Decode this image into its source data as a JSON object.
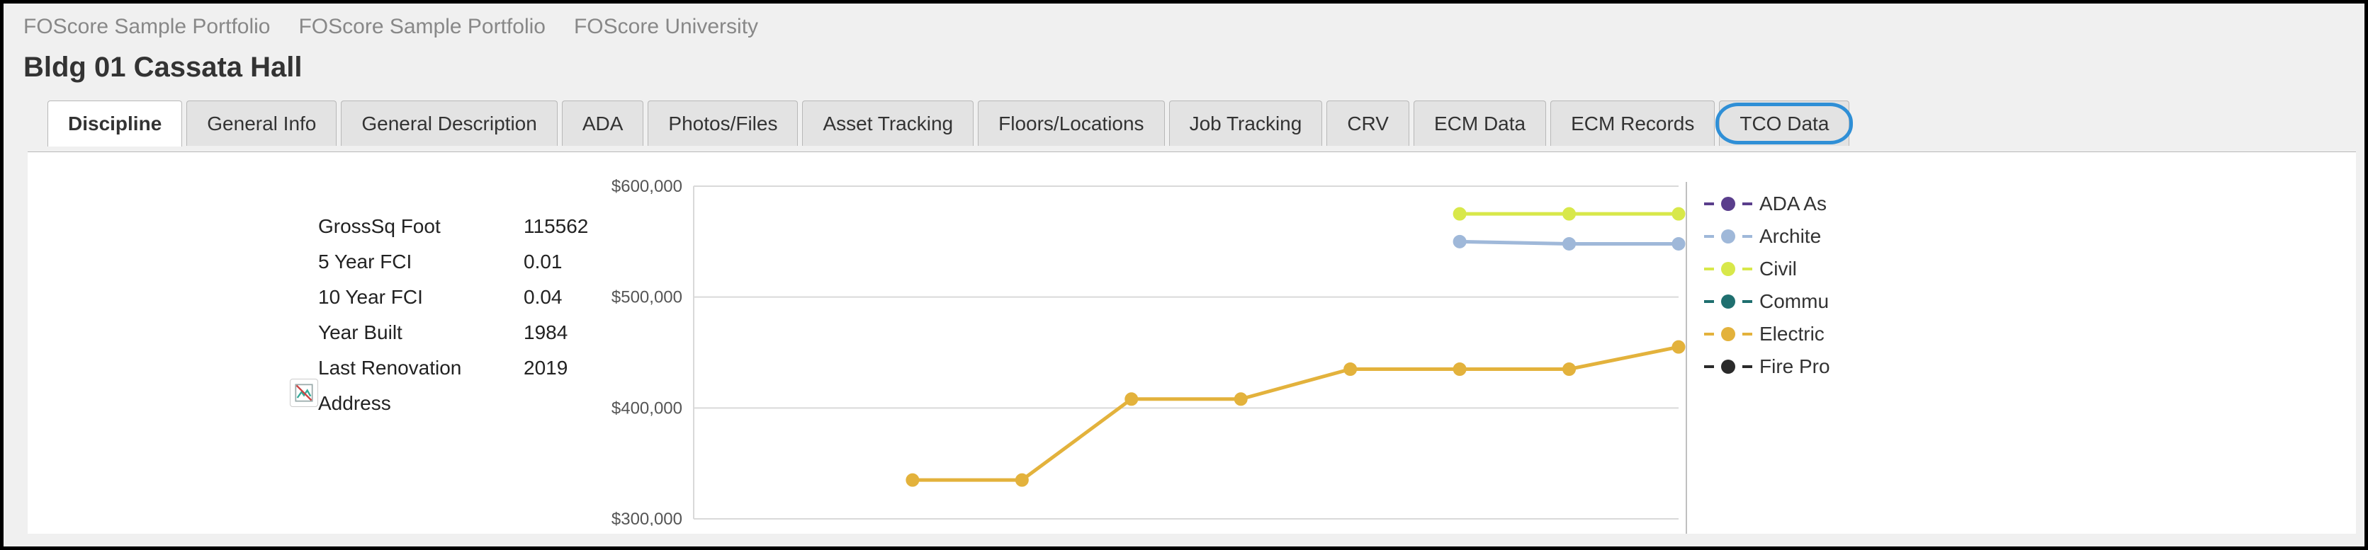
{
  "breadcrumbs": [
    "FOScore Sample Portfolio",
    "FOScore Sample Portfolio",
    "FOScore University"
  ],
  "page_title": "Bldg 01 Cassata Hall",
  "tabs": [
    {
      "label": "Discipline",
      "active": true
    },
    {
      "label": "General Info"
    },
    {
      "label": "General Description"
    },
    {
      "label": "ADA"
    },
    {
      "label": "Photos/Files"
    },
    {
      "label": "Asset Tracking"
    },
    {
      "label": "Floors/Locations"
    },
    {
      "label": "Job Tracking"
    },
    {
      "label": "CRV"
    },
    {
      "label": "ECM Data"
    },
    {
      "label": "ECM Records"
    },
    {
      "label": "TCO Data",
      "highlighted": true
    }
  ],
  "info": [
    {
      "label": "GrossSq Foot",
      "value": "115562"
    },
    {
      "label": "5 Year FCI",
      "value": "0.01"
    },
    {
      "label": "10 Year FCI",
      "value": "0.04"
    },
    {
      "label": "Year Built",
      "value": "1984"
    },
    {
      "label": "Last Renovation",
      "value": "2019"
    },
    {
      "label": "Address",
      "value": ""
    }
  ],
  "chart": {
    "type": "line",
    "y_min": 300000,
    "y_max": 600000,
    "y_tick_step": 100000,
    "y_tick_labels": [
      "$600,000",
      "$500,000",
      "$400,000",
      "$300,000"
    ],
    "grid_color": "#d9d9d9",
    "axis_color": "#9a9a9a",
    "background_color": "#ffffff",
    "tick_label_color": "#555555",
    "tick_label_fontsize": 24,
    "marker_radius": 9,
    "line_width": 5,
    "x_points": 10,
    "series": [
      {
        "name": "Civil",
        "color": "#d8e84a",
        "values": [
          null,
          null,
          null,
          null,
          null,
          null,
          null,
          575000,
          575000,
          575000
        ]
      },
      {
        "name": "Architectural",
        "color": "#9fb8d9",
        "values": [
          null,
          null,
          null,
          null,
          null,
          null,
          null,
          550000,
          548000,
          548000
        ]
      },
      {
        "name": "Electrical",
        "color": "#e3b23c",
        "values": [
          null,
          null,
          335000,
          335000,
          408000,
          408000,
          435000,
          435000,
          435000,
          455000
        ]
      }
    ]
  },
  "legend": [
    {
      "label": "ADA As",
      "color": "#5a3e8c"
    },
    {
      "label": "Archite",
      "color": "#9fb8d9"
    },
    {
      "label": "Civil",
      "color": "#d8e84a"
    },
    {
      "label": "Commu",
      "color": "#1f6f6f"
    },
    {
      "label": "Electric",
      "color": "#e3b23c"
    },
    {
      "label": "Fire Pro",
      "color": "#2a2a2a"
    }
  ]
}
